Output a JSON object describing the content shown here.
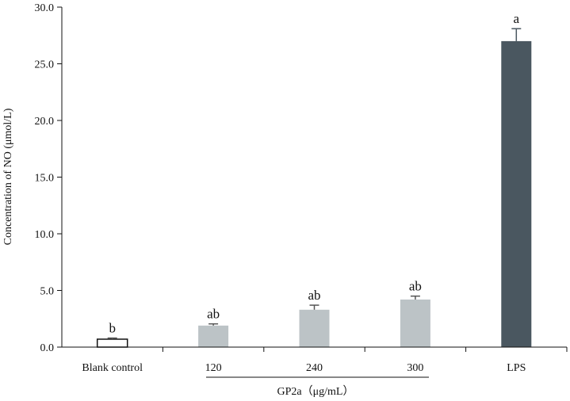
{
  "chart_data": {
    "type": "bar",
    "ylabel": "Concentration of NO (μmol/L)",
    "ylim": [
      0,
      30
    ],
    "yticks": [
      "0.0",
      "5.0",
      "10.0",
      "15.0",
      "20.0",
      "25.0",
      "30.0"
    ],
    "group_label": "GP2a（μg/mL）",
    "grid": false,
    "categories": [
      "Blank control",
      "120",
      "240",
      "300",
      "LPS"
    ],
    "values": [
      0.7,
      1.9,
      3.3,
      4.2,
      27.0
    ],
    "errors": [
      0.1,
      0.15,
      0.4,
      0.3,
      1.1
    ],
    "significance": [
      "b",
      "ab",
      "ab",
      "ab",
      "a"
    ],
    "bar_colors": [
      "#ffffff",
      "#bcc3c6",
      "#bcc3c6",
      "#bcc3c6",
      "#4a5760"
    ],
    "bar_edge_color": "#111111"
  }
}
